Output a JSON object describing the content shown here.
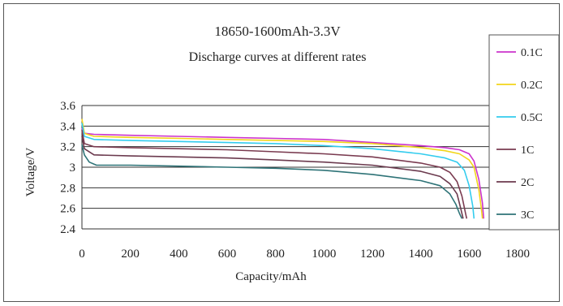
{
  "chart_data": {
    "type": "line",
    "title": "18650-1600mAh-3.3V",
    "subtitle": "Discharge curves at different rates",
    "xlabel": "Capacity/mAh",
    "ylabel": "Voltage/V",
    "xlim": [
      0,
      1800
    ],
    "ylim": [
      2.4,
      3.6
    ],
    "x_ticks": [
      "0",
      "200",
      "400",
      "600",
      "800",
      "1000",
      "1200",
      "1400",
      "1600",
      "1800"
    ],
    "y_ticks": [
      "3.6",
      "3.4",
      "3.2",
      "3",
      "2.8",
      "2.6",
      "2.4"
    ],
    "grid": "horizontal",
    "legend_position": "right",
    "series": [
      {
        "name": "0.1C",
        "color": "#cc33cc",
        "points": [
          [
            0,
            3.38
          ],
          [
            10,
            3.33
          ],
          [
            50,
            3.32
          ],
          [
            200,
            3.31
          ],
          [
            400,
            3.3
          ],
          [
            600,
            3.29
          ],
          [
            800,
            3.28
          ],
          [
            1000,
            3.27
          ],
          [
            1200,
            3.24
          ],
          [
            1400,
            3.21
          ],
          [
            1500,
            3.19
          ],
          [
            1560,
            3.17
          ],
          [
            1600,
            3.13
          ],
          [
            1620,
            3.06
          ],
          [
            1640,
            2.88
          ],
          [
            1655,
            2.65
          ],
          [
            1660,
            2.5
          ]
        ]
      },
      {
        "name": "0.2C",
        "color": "#f2d51a",
        "points": [
          [
            0,
            3.47
          ],
          [
            10,
            3.33
          ],
          [
            50,
            3.3
          ],
          [
            200,
            3.29
          ],
          [
            400,
            3.28
          ],
          [
            600,
            3.27
          ],
          [
            800,
            3.26
          ],
          [
            1000,
            3.25
          ],
          [
            1200,
            3.23
          ],
          [
            1400,
            3.19
          ],
          [
            1500,
            3.16
          ],
          [
            1560,
            3.13
          ],
          [
            1600,
            3.07
          ],
          [
            1620,
            3.0
          ],
          [
            1640,
            2.78
          ],
          [
            1650,
            2.6
          ],
          [
            1655,
            2.5
          ]
        ]
      },
      {
        "name": "0.5C",
        "color": "#33ccee",
        "points": [
          [
            0,
            3.43
          ],
          [
            10,
            3.3
          ],
          [
            50,
            3.27
          ],
          [
            200,
            3.26
          ],
          [
            400,
            3.25
          ],
          [
            600,
            3.24
          ],
          [
            800,
            3.23
          ],
          [
            1000,
            3.21
          ],
          [
            1200,
            3.18
          ],
          [
            1400,
            3.13
          ],
          [
            1500,
            3.09
          ],
          [
            1550,
            3.05
          ],
          [
            1580,
            2.97
          ],
          [
            1600,
            2.82
          ],
          [
            1615,
            2.62
          ],
          [
            1620,
            2.5
          ]
        ]
      },
      {
        "name": "1C",
        "color": "#7a3b50",
        "points": [
          [
            0,
            3.36
          ],
          [
            10,
            3.23
          ],
          [
            50,
            3.2
          ],
          [
            200,
            3.19
          ],
          [
            400,
            3.18
          ],
          [
            600,
            3.17
          ],
          [
            800,
            3.15
          ],
          [
            1000,
            3.13
          ],
          [
            1200,
            3.1
          ],
          [
            1400,
            3.04
          ],
          [
            1480,
            3.0
          ],
          [
            1520,
            2.95
          ],
          [
            1550,
            2.86
          ],
          [
            1570,
            2.72
          ],
          [
            1585,
            2.55
          ],
          [
            1590,
            2.5
          ]
        ]
      },
      {
        "name": "2C",
        "color": "#6b3a4e",
        "points": [
          [
            0,
            3.3
          ],
          [
            10,
            3.18
          ],
          [
            50,
            3.12
          ],
          [
            200,
            3.11
          ],
          [
            400,
            3.1
          ],
          [
            600,
            3.09
          ],
          [
            800,
            3.07
          ],
          [
            1000,
            3.05
          ],
          [
            1200,
            3.02
          ],
          [
            1400,
            2.96
          ],
          [
            1480,
            2.91
          ],
          [
            1520,
            2.84
          ],
          [
            1550,
            2.74
          ],
          [
            1565,
            2.6
          ],
          [
            1575,
            2.5
          ]
        ]
      },
      {
        "name": "3C",
        "color": "#2e7377",
        "points": [
          [
            0,
            3.22
          ],
          [
            10,
            3.12
          ],
          [
            30,
            3.05
          ],
          [
            60,
            3.02
          ],
          [
            200,
            3.02
          ],
          [
            400,
            3.01
          ],
          [
            600,
            3.0
          ],
          [
            800,
            2.99
          ],
          [
            1000,
            2.97
          ],
          [
            1200,
            2.93
          ],
          [
            1400,
            2.87
          ],
          [
            1480,
            2.82
          ],
          [
            1520,
            2.74
          ],
          [
            1545,
            2.64
          ],
          [
            1560,
            2.55
          ],
          [
            1570,
            2.5
          ]
        ]
      }
    ]
  }
}
